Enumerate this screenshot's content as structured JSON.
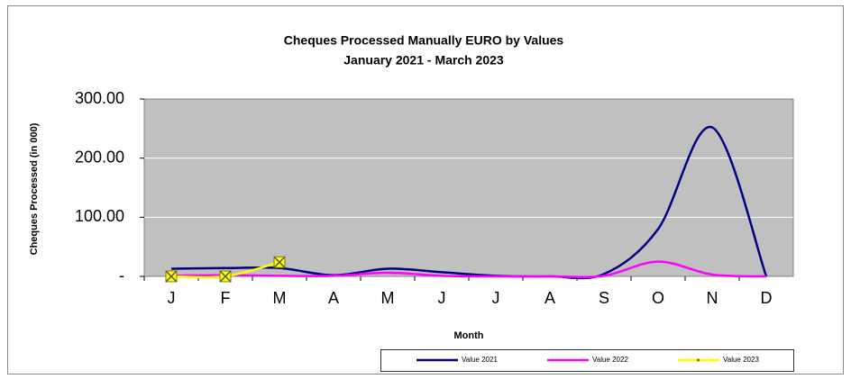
{
  "chart_data": {
    "type": "line",
    "title": "Cheques Processed Manually EURO by Values",
    "subtitle": "January 2021 - March 2023",
    "y_label": "Cheques Processed (in 000)",
    "x_label": "Month",
    "categories": [
      "J",
      "F",
      "M",
      "A",
      "M",
      "J",
      "J",
      "A",
      "S",
      "O",
      "N",
      "D"
    ],
    "series": [
      {
        "name": "Value 2021",
        "color": "#000080",
        "values": [
          13,
          14,
          14,
          2,
          13,
          7,
          1,
          0,
          4,
          80,
          252,
          0
        ]
      },
      {
        "name": "Value 2022",
        "color": "#ff00ff",
        "values": [
          1,
          2,
          1,
          1,
          6,
          1,
          0,
          0,
          1,
          25,
          3,
          0
        ]
      },
      {
        "name": "Value 2023",
        "color": "#ffff00",
        "values": [
          0,
          0,
          24,
          null,
          null,
          null,
          null,
          null,
          null,
          null,
          null,
          null
        ]
      }
    ],
    "ylim": [
      0,
      300
    ],
    "yticks": [
      {
        "value": 0,
        "label": "-"
      },
      {
        "value": 100,
        "label": "100.00"
      },
      {
        "value": 200,
        "label": "200.00"
      },
      {
        "value": 300,
        "label": "300.00"
      }
    ],
    "grid": true,
    "legend": "bottom"
  }
}
